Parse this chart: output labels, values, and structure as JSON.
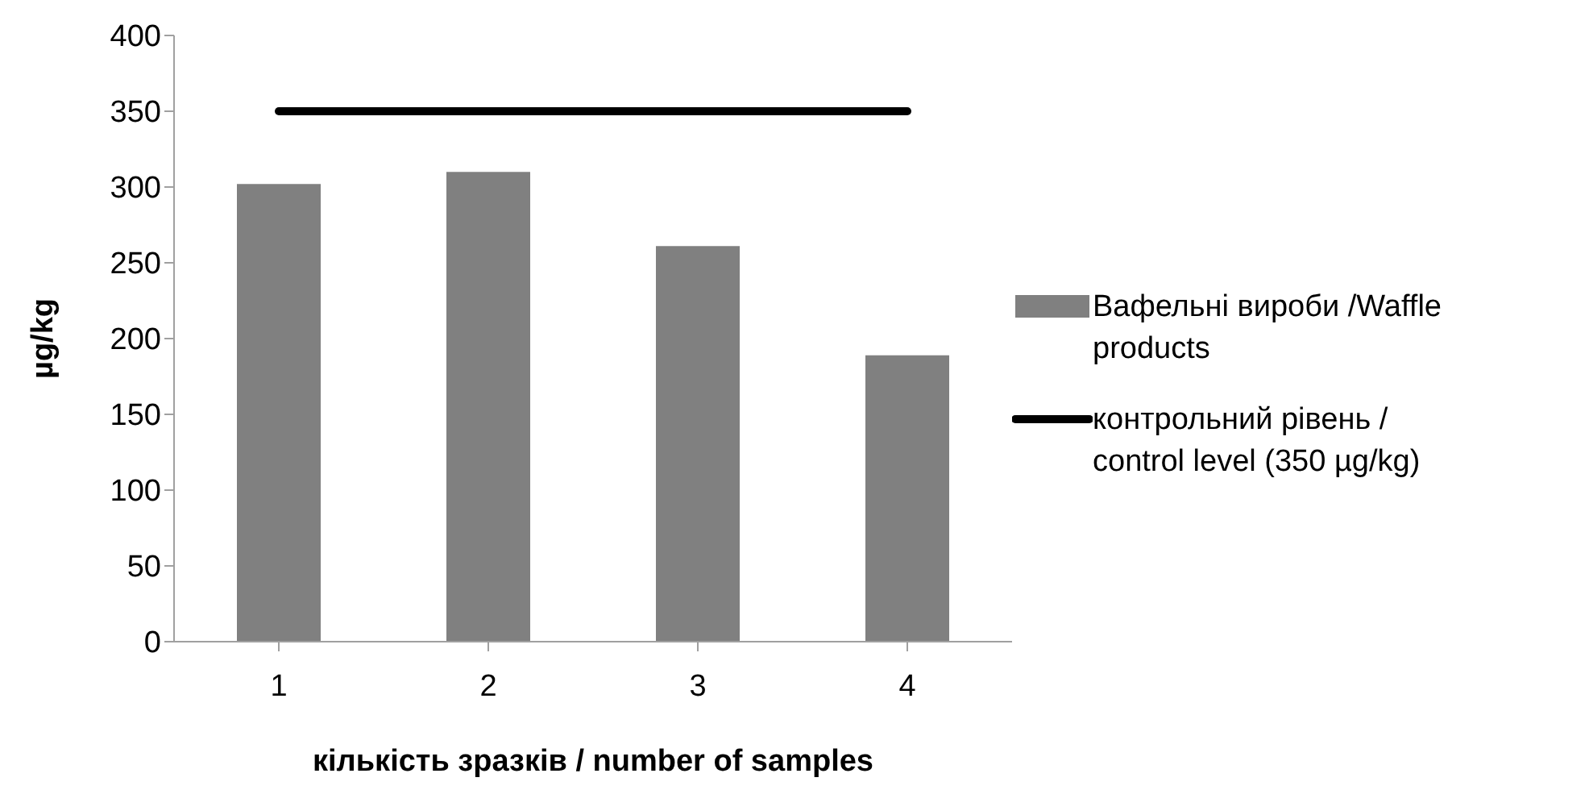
{
  "chart_data": {
    "type": "bar",
    "xlabel": "кількість зразків / number of samples",
    "ylabel": "µg/kg",
    "categories": [
      "1",
      "2",
      "3",
      "4"
    ],
    "series": [
      {
        "name": "Вафельні вироби /Waffle products",
        "color": "#808080",
        "values": [
          302,
          310,
          261,
          189
        ]
      },
      {
        "name": "контрольний рівень / control level (350 µg/kg)",
        "type": "line",
        "color": "#000000",
        "marker": "none",
        "values": [
          350,
          350,
          350,
          350
        ]
      }
    ],
    "ylim": [
      0,
      400
    ],
    "yticks": [
      0,
      50,
      100,
      150,
      200,
      250,
      300,
      350,
      400
    ],
    "legend": "right"
  }
}
